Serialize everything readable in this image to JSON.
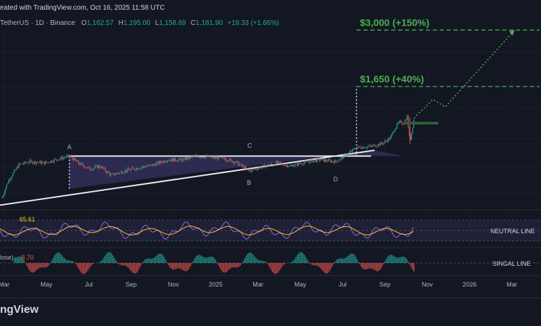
{
  "header": {
    "line1": "eated with TradingView.com, Oct 16, 2025 11:58 UTC",
    "symbol": "TetherUS · 1D · Binance",
    "ohlc": {
      "o_label": "O",
      "o": "1,162.57",
      "h_label": "H",
      "h": "1,195.00",
      "l_label": "L",
      "l": "1,158.69",
      "c_label": "C",
      "c": "1,181.90",
      "change": "+19.33 (+1.66%)"
    }
  },
  "footer": {
    "logo_text": "ngView"
  },
  "colors": {
    "background": "#131722",
    "up": "#26a69a",
    "down": "#ef5350",
    "target": "#4caf50",
    "rsi": "#7e57c2",
    "rsi_ma": "#f9c623",
    "pattern": "#5a4a9b"
  },
  "chart_data": {
    "type": "candlestick",
    "x_axis_labels": [
      "Mar",
      "May",
      "Jul",
      "Sep",
      "Nov",
      "2025",
      "Mar",
      "May",
      "Jul",
      "Sep",
      "Nov",
      "2026",
      "Mar"
    ],
    "price_path": [
      [
        "2024-03-01",
        510
      ],
      [
        "2024-03-10",
        610
      ],
      [
        "2024-03-25",
        720
      ],
      [
        "2024-04-10",
        745
      ],
      [
        "2024-05-01",
        735
      ],
      [
        "2024-05-20",
        765
      ],
      [
        "2024-06-06",
        790
      ],
      [
        "2024-06-20",
        730
      ],
      [
        "2024-07-05",
        690
      ],
      [
        "2024-07-20",
        710
      ],
      [
        "2024-08-05",
        645
      ],
      [
        "2024-08-25",
        675
      ],
      [
        "2024-09-15",
        700
      ],
      [
        "2024-10-05",
        720
      ],
      [
        "2024-10-25",
        760
      ],
      [
        "2024-11-15",
        760
      ],
      [
        "2024-12-05",
        790
      ],
      [
        "2024-12-25",
        780
      ],
      [
        "2025-01-15",
        770
      ],
      [
        "2025-02-01",
        740
      ],
      [
        "2025-02-20",
        675
      ],
      [
        "2025-03-10",
        705
      ],
      [
        "2025-04-01",
        735
      ],
      [
        "2025-04-20",
        712
      ],
      [
        "2025-05-10",
        738
      ],
      [
        "2025-06-01",
        760
      ],
      [
        "2025-06-25",
        745
      ],
      [
        "2025-07-10",
        800
      ],
      [
        "2025-07-25",
        865
      ],
      [
        "2025-08-15",
        875
      ],
      [
        "2025-09-01",
        905
      ],
      [
        "2025-09-12",
        960
      ],
      [
        "2025-09-18",
        1060
      ],
      [
        "2025-09-25",
        1130
      ],
      [
        "2025-10-01",
        1120
      ],
      [
        "2025-10-06",
        1200
      ],
      [
        "2025-10-10",
        920
      ],
      [
        "2025-10-16",
        1182
      ]
    ],
    "pattern_points": [
      {
        "label": "A",
        "date": "2024-06-06",
        "price": 790
      },
      {
        "label": "B",
        "date": "2025-02-20",
        "price": 675
      },
      {
        "label": "C",
        "date": "2025-02-01",
        "price": 790
      },
      {
        "label": "D",
        "date": "2025-06-25",
        "price": 700
      }
    ],
    "targets": [
      {
        "label": "$1,650 (+40%)",
        "price": 1650
      },
      {
        "label": "$3,000 (+150%)",
        "price": 3000
      }
    ],
    "rsi": {
      "last_value": "65.61",
      "line_label": "NEUTRAL LINE"
    },
    "oscillator": {
      "name": "lose)",
      "last_value": "-8.70",
      "line_label": "SINGAL LINE"
    }
  }
}
